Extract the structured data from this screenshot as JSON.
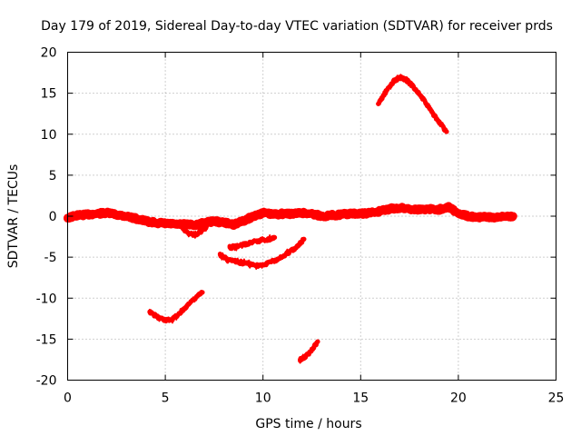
{
  "chart_data": {
    "type": "scatter",
    "title": "Day 179 of 2019, Sidereal Day-to-day VTEC variation (SDTVAR) for receiver prds",
    "xlabel": "GPS time / hours",
    "ylabel": "SDTVAR / TECUs",
    "xlim": [
      0,
      25
    ],
    "ylim": [
      -20,
      20
    ],
    "xticks": [
      0,
      5,
      10,
      15,
      20,
      25
    ],
    "yticks": [
      -20,
      -15,
      -10,
      -5,
      0,
      5,
      10,
      15,
      20
    ],
    "xtick_labels": [
      "0",
      "5",
      "10",
      "15",
      "20",
      "25"
    ],
    "ytick_labels": [
      "-20",
      "-15",
      "-10",
      "-5",
      "0",
      "5",
      "10",
      "15",
      "20"
    ],
    "grid": true,
    "color": "#ff0000",
    "series": [
      {
        "name": "main",
        "x": [
          0,
          0.5,
          1,
          1.5,
          2,
          2.5,
          3,
          3.5,
          4,
          4.5,
          5,
          5.5,
          6,
          6.5,
          7,
          7.5,
          8,
          8.5,
          9,
          9.5,
          10,
          10.5,
          11,
          11.5,
          12,
          12.5,
          13,
          13.5,
          14,
          14.5,
          15,
          15.5,
          16,
          16.5,
          17,
          17.5,
          18,
          18.5,
          19,
          19.5,
          20,
          20.5,
          21,
          21.5,
          22,
          22.5,
          22.8
        ],
        "y": [
          -0.2,
          0.1,
          0.2,
          0.3,
          0.4,
          0.2,
          0.0,
          -0.3,
          -0.6,
          -0.8,
          -0.9,
          -1.0,
          -1.0,
          -1.1,
          -0.8,
          -0.6,
          -0.8,
          -1.0,
          -0.6,
          0.0,
          0.4,
          0.2,
          0.3,
          0.3,
          0.4,
          0.3,
          0.0,
          0.1,
          0.2,
          0.3,
          0.3,
          0.4,
          0.6,
          0.9,
          1.0,
          0.9,
          0.8,
          0.9,
          0.8,
          1.2,
          0.3,
          0.0,
          -0.1,
          -0.1,
          -0.2,
          0.0,
          0.0
        ]
      },
      {
        "name": "dip-6-7",
        "x": [
          5.9,
          6.2,
          6.5,
          6.8,
          7.1
        ],
        "y": [
          -1.5,
          -2.1,
          -2.3,
          -1.9,
          -1.3
        ]
      },
      {
        "name": "arc-high",
        "x": [
          15.9,
          16.3,
          16.7,
          17.0,
          17.3,
          17.7,
          18.1,
          18.5,
          18.9,
          19.4
        ],
        "y": [
          13.7,
          15.2,
          16.5,
          16.9,
          16.7,
          15.8,
          14.6,
          13.2,
          11.8,
          10.3
        ]
      },
      {
        "name": "seg-a",
        "x": [
          4.2,
          4.6,
          5.0,
          5.4,
          5.8,
          6.2,
          6.6,
          6.9
        ],
        "y": [
          -11.7,
          -12.3,
          -12.7,
          -12.5,
          -11.7,
          -10.7,
          -9.8,
          -9.3
        ]
      },
      {
        "name": "seg-b",
        "x": [
          7.8,
          8.2,
          8.7,
          9.2,
          9.7,
          10.2,
          10.7,
          11.2,
          11.7,
          12.1
        ],
        "y": [
          -4.7,
          -5.3,
          -5.6,
          -5.8,
          -6.0,
          -5.8,
          -5.3,
          -4.6,
          -3.8,
          -2.8
        ]
      },
      {
        "name": "seg-c",
        "x": [
          8.3,
          8.8,
          9.3,
          9.8,
          10.3,
          10.6
        ],
        "y": [
          -3.8,
          -3.6,
          -3.3,
          -3.0,
          -2.8,
          -2.6
        ]
      },
      {
        "name": "seg-d",
        "x": [
          11.9,
          12.2,
          12.5,
          12.8
        ],
        "y": [
          -17.5,
          -17.1,
          -16.3,
          -15.3
        ]
      }
    ]
  }
}
